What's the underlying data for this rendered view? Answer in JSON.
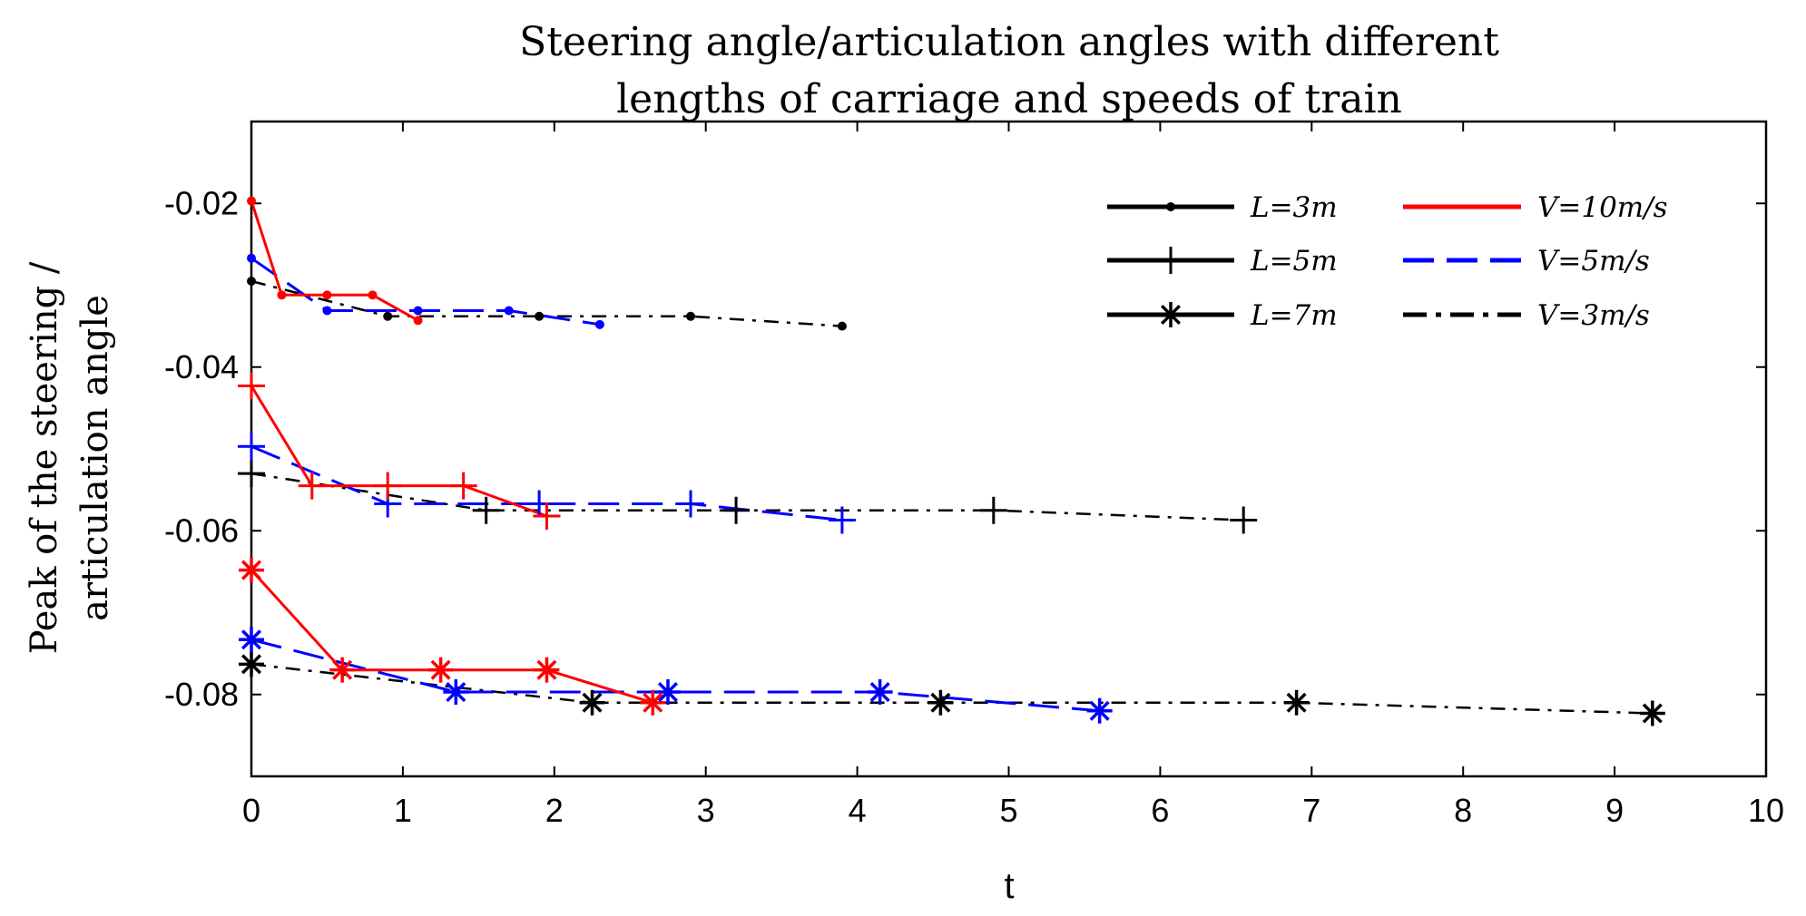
{
  "chart_data": {
    "type": "line",
    "title": [
      "Steering angle/articulation angles with different",
      "lengths of carriage and speeds of train"
    ],
    "xlabel": "t",
    "ylabel": [
      "Peak of the steering /",
      "articulation angle"
    ],
    "xlim": [
      0,
      10
    ],
    "ylim": [
      -0.09,
      -0.01
    ],
    "xticks": [
      0,
      1,
      2,
      3,
      4,
      5,
      6,
      7,
      8,
      9,
      10
    ],
    "yticks": [
      -0.02,
      -0.04,
      -0.06,
      -0.08
    ],
    "xtick_labels": [
      "0",
      "1",
      "2",
      "3",
      "4",
      "5",
      "6",
      "7",
      "8",
      "9",
      "10"
    ],
    "ytick_labels": [
      "-0.02",
      "-0.04",
      "-0.06",
      "-0.08"
    ],
    "grid": false,
    "legend": {
      "position": "top-right",
      "length_entries": [
        {
          "label": "L=3m",
          "marker": "dot"
        },
        {
          "label": "L=5m",
          "marker": "plus"
        },
        {
          "label": "L=7m",
          "marker": "star"
        }
      ],
      "speed_entries": [
        {
          "label": "V=10m/s",
          "color": "#ff0000",
          "line": "solid"
        },
        {
          "label": "V=5m/s",
          "color": "#0000ff",
          "line": "dashed"
        },
        {
          "label": "V=3m/s",
          "color": "#000000",
          "line": "dashdot"
        }
      ]
    },
    "series": [
      {
        "name": "L=3m, V=10m/s",
        "color": "#ff0000",
        "line": "solid",
        "marker": "dot",
        "x": [
          0,
          0.2,
          0.5,
          0.8,
          1.1
        ],
        "y": [
          -0.0197,
          -0.0312,
          -0.0312,
          -0.0312,
          -0.0343
        ]
      },
      {
        "name": "L=3m, V=5m/s",
        "color": "#0000ff",
        "line": "dashed",
        "marker": "dot",
        "x": [
          0,
          0.5,
          1.1,
          1.7,
          2.3
        ],
        "y": [
          -0.0267,
          -0.0331,
          -0.0331,
          -0.0331,
          -0.0348
        ]
      },
      {
        "name": "L=3m, V=3m/s",
        "color": "#000000",
        "line": "dashdot",
        "marker": "dot",
        "x": [
          0,
          0.9,
          1.9,
          2.9,
          3.9
        ],
        "y": [
          -0.0295,
          -0.0338,
          -0.0338,
          -0.0338,
          -0.035
        ]
      },
      {
        "name": "L=5m, V=10m/s",
        "color": "#ff0000",
        "line": "solid",
        "marker": "plus",
        "x": [
          0,
          0.4,
          0.9,
          1.4,
          1.95
        ],
        "y": [
          -0.0423,
          -0.0545,
          -0.0545,
          -0.0545,
          -0.0582
        ]
      },
      {
        "name": "L=5m, V=5m/s",
        "color": "#0000ff",
        "line": "dashed",
        "marker": "plus",
        "x": [
          0,
          0.9,
          1.9,
          2.9,
          3.9
        ],
        "y": [
          -0.0497,
          -0.0567,
          -0.0567,
          -0.0567,
          -0.0587
        ]
      },
      {
        "name": "L=5m, V=3m/s",
        "color": "#000000",
        "line": "dashdot",
        "marker": "plus",
        "x": [
          0,
          1.55,
          3.2,
          4.9,
          6.55
        ],
        "y": [
          -0.053,
          -0.0575,
          -0.0575,
          -0.0575,
          -0.0587
        ]
      },
      {
        "name": "L=7m, V=10m/s",
        "color": "#ff0000",
        "line": "solid",
        "marker": "star",
        "x": [
          0,
          0.6,
          1.25,
          1.95,
          2.65
        ],
        "y": [
          -0.0648,
          -0.077,
          -0.077,
          -0.077,
          -0.081
        ]
      },
      {
        "name": "L=7m, V=5m/s",
        "color": "#0000ff",
        "line": "dashed",
        "marker": "star",
        "x": [
          0,
          1.35,
          2.75,
          4.15,
          5.6
        ],
        "y": [
          -0.0733,
          -0.0797,
          -0.0797,
          -0.0797,
          -0.082
        ]
      },
      {
        "name": "L=7m, V=3m/s",
        "color": "#000000",
        "line": "dashdot",
        "marker": "star",
        "x": [
          0,
          2.25,
          4.55,
          6.9,
          9.25
        ],
        "y": [
          -0.0763,
          -0.081,
          -0.081,
          -0.081,
          -0.0823
        ]
      }
    ]
  }
}
